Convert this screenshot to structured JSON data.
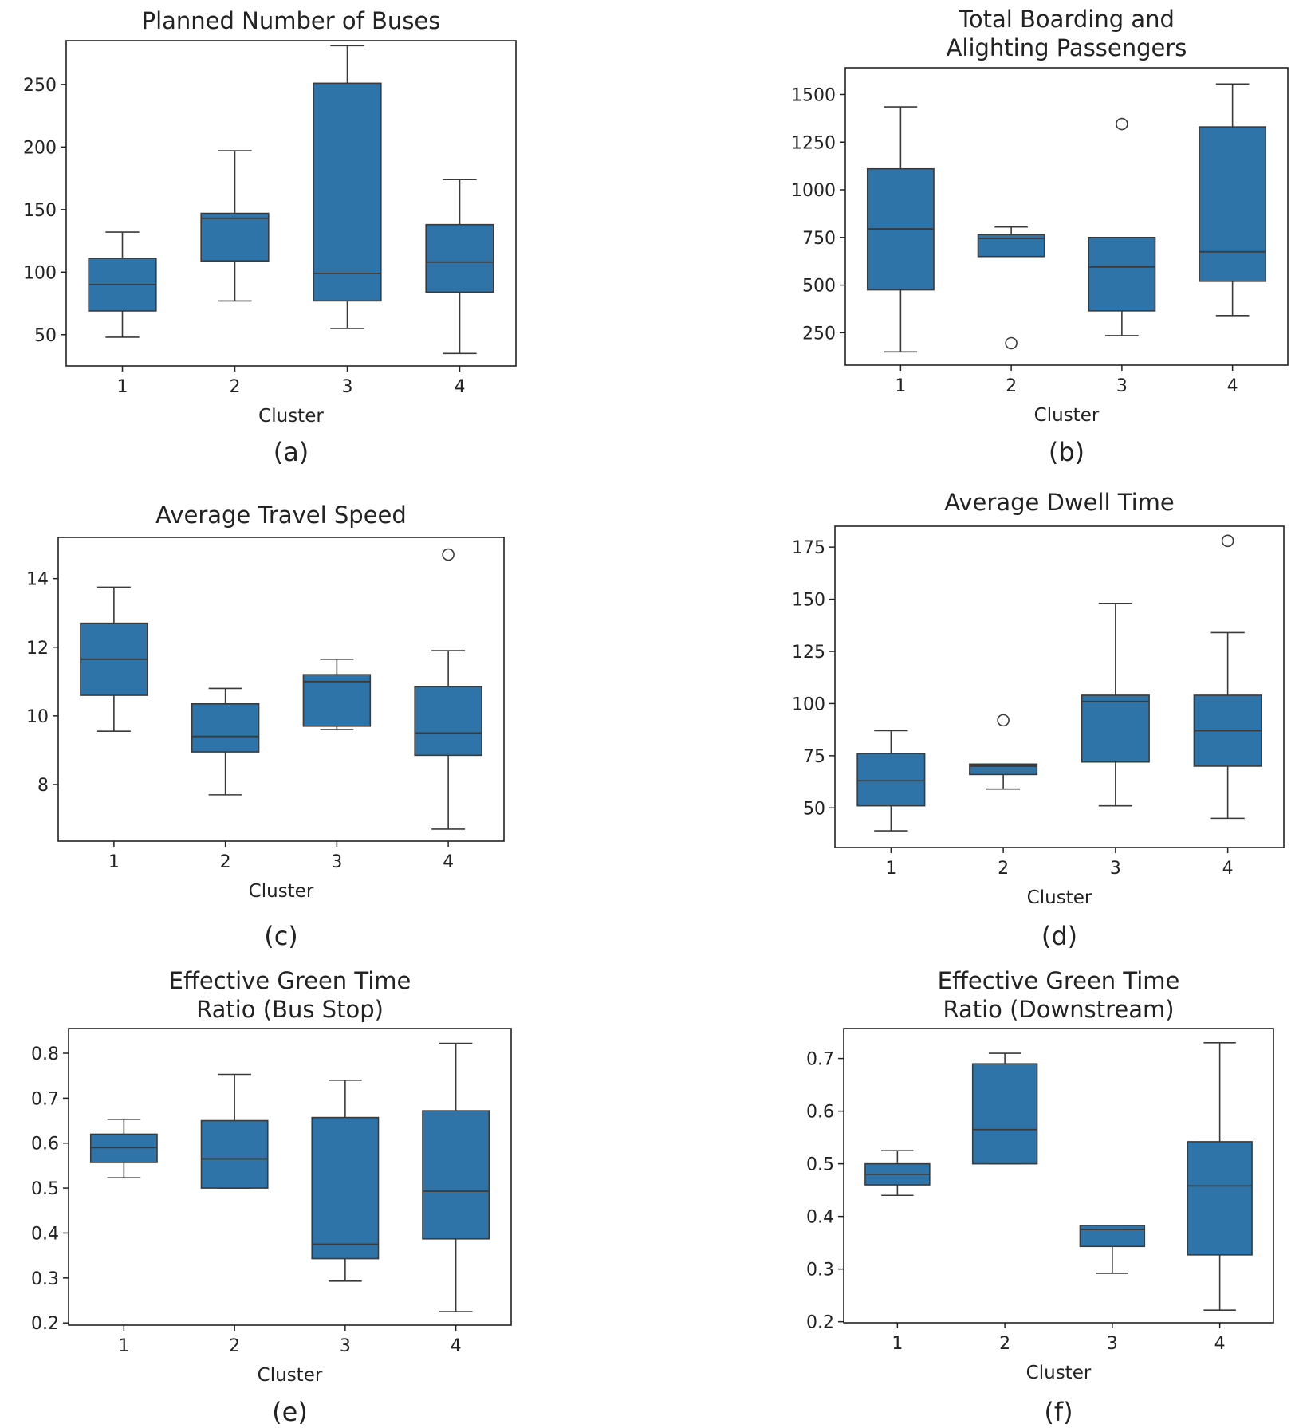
{
  "colors": {
    "box_fill": "#2e74a8",
    "line": "#3a3a3a",
    "frame": "#222222"
  },
  "chart_data": [
    {
      "type": "boxplot",
      "title": [
        "Planned Number of Buses"
      ],
      "xlabel": "Cluster",
      "caption": "(a)",
      "categories": [
        "1",
        "2",
        "3",
        "4"
      ],
      "yticks": [
        50,
        100,
        150,
        200,
        250
      ],
      "ylim": [
        25,
        285
      ],
      "boxes": [
        {
          "whislo": 48,
          "q1": 69,
          "med": 90,
          "q3": 111,
          "whishi": 132,
          "fliers": []
        },
        {
          "whislo": 77,
          "q1": 109,
          "med": 143,
          "q3": 147,
          "whishi": 197,
          "fliers": []
        },
        {
          "whislo": 55,
          "q1": 77,
          "med": 99,
          "q3": 251,
          "whishi": 281,
          "fliers": []
        },
        {
          "whislo": 35,
          "q1": 84,
          "med": 108,
          "q3": 138,
          "whishi": 174,
          "fliers": []
        }
      ]
    },
    {
      "type": "boxplot",
      "title": [
        "Total Boarding and",
        "Alighting Passengers"
      ],
      "xlabel": "Cluster",
      "caption": "(b)",
      "categories": [
        "1",
        "2",
        "3",
        "4"
      ],
      "yticks": [
        250,
        500,
        750,
        1000,
        1250,
        1500
      ],
      "ylim": [
        80,
        1640
      ],
      "boxes": [
        {
          "whislo": 150,
          "q1": 475,
          "med": 795,
          "q3": 1110,
          "whishi": 1435,
          "fliers": []
        },
        {
          "whislo": 650,
          "q1": 650,
          "med": 745,
          "q3": 765,
          "whishi": 805,
          "fliers": [
            195
          ]
        },
        {
          "whislo": 235,
          "q1": 365,
          "med": 595,
          "q3": 750,
          "whishi": 750,
          "fliers": [
            1345
          ]
        },
        {
          "whislo": 340,
          "q1": 520,
          "med": 675,
          "q3": 1330,
          "whishi": 1555,
          "fliers": []
        }
      ]
    },
    {
      "type": "boxplot",
      "title": [
        "Average Travel Speed"
      ],
      "xlabel": "Cluster",
      "caption": "(c)",
      "categories": [
        "1",
        "2",
        "3",
        "4"
      ],
      "yticks": [
        8,
        10,
        12,
        14
      ],
      "ylim": [
        6.35,
        15.2
      ],
      "boxes": [
        {
          "whislo": 9.55,
          "q1": 10.6,
          "med": 11.65,
          "q3": 12.7,
          "whishi": 13.75,
          "fliers": []
        },
        {
          "whislo": 7.7,
          "q1": 8.95,
          "med": 9.4,
          "q3": 10.35,
          "whishi": 10.8,
          "fliers": []
        },
        {
          "whislo": 9.6,
          "q1": 9.7,
          "med": 11.0,
          "q3": 11.2,
          "whishi": 11.65,
          "fliers": []
        },
        {
          "whislo": 6.7,
          "q1": 8.85,
          "med": 9.5,
          "q3": 10.85,
          "whishi": 11.9,
          "fliers": [
            14.7
          ]
        }
      ]
    },
    {
      "type": "boxplot",
      "title": [
        "Average Dwell Time"
      ],
      "xlabel": "Cluster",
      "caption": "(d)",
      "categories": [
        "1",
        "2",
        "3",
        "4"
      ],
      "yticks": [
        50,
        75,
        100,
        125,
        150,
        175
      ],
      "ylim": [
        31,
        185
      ],
      "boxes": [
        {
          "whislo": 39,
          "q1": 51,
          "med": 63,
          "q3": 76,
          "whishi": 87,
          "fliers": []
        },
        {
          "whislo": 59,
          "q1": 66,
          "med": 70,
          "q3": 71,
          "whishi": 71,
          "fliers": [
            92
          ]
        },
        {
          "whislo": 51,
          "q1": 72,
          "med": 101,
          "q3": 104,
          "whishi": 148,
          "fliers": []
        },
        {
          "whislo": 45,
          "q1": 70,
          "med": 87,
          "q3": 104,
          "whishi": 134,
          "fliers": [
            178
          ]
        }
      ]
    },
    {
      "type": "boxplot",
      "title": [
        "Effective Green Time",
        "Ratio (Bus Stop)"
      ],
      "xlabel": "Cluster",
      "caption": "(e)",
      "categories": [
        "1",
        "2",
        "3",
        "4"
      ],
      "yticks": [
        0.2,
        0.3,
        0.4,
        0.5,
        0.6,
        0.7,
        0.8
      ],
      "ylim": [
        0.195,
        0.855
      ],
      "boxes": [
        {
          "whislo": 0.523,
          "q1": 0.557,
          "med": 0.59,
          "q3": 0.62,
          "whishi": 0.653,
          "fliers": []
        },
        {
          "whislo": 0.5,
          "q1": 0.5,
          "med": 0.565,
          "q3": 0.65,
          "whishi": 0.753,
          "fliers": []
        },
        {
          "whislo": 0.293,
          "q1": 0.343,
          "med": 0.375,
          "q3": 0.657,
          "whishi": 0.74,
          "fliers": []
        },
        {
          "whislo": 0.225,
          "q1": 0.387,
          "med": 0.493,
          "q3": 0.672,
          "whishi": 0.822,
          "fliers": []
        }
      ]
    },
    {
      "type": "boxplot",
      "title": [
        "Effective Green Time",
        "Ratio (Downstream)"
      ],
      "xlabel": "Cluster",
      "caption": "(f)",
      "categories": [
        "1",
        "2",
        "3",
        "4"
      ],
      "yticks": [
        0.2,
        0.3,
        0.4,
        0.5,
        0.6,
        0.7
      ],
      "ylim": [
        0.198,
        0.757
      ],
      "boxes": [
        {
          "whislo": 0.44,
          "q1": 0.46,
          "med": 0.48,
          "q3": 0.5,
          "whishi": 0.525,
          "fliers": []
        },
        {
          "whislo": 0.5,
          "q1": 0.5,
          "med": 0.565,
          "q3": 0.69,
          "whishi": 0.71,
          "fliers": []
        },
        {
          "whislo": 0.292,
          "q1": 0.343,
          "med": 0.375,
          "q3": 0.383,
          "whishi": 0.383,
          "fliers": []
        },
        {
          "whislo": 0.222,
          "q1": 0.327,
          "med": 0.458,
          "q3": 0.542,
          "whishi": 0.73,
          "fliers": []
        }
      ]
    }
  ]
}
